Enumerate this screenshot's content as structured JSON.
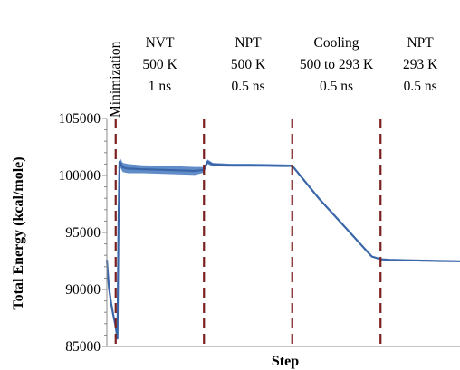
{
  "chart_data": {
    "type": "line",
    "title": "",
    "xlabel": "Step",
    "ylabel": "Total Energy (kcal/mole)",
    "ylim": [
      85000,
      105000
    ],
    "yticks": [
      85000,
      90000,
      95000,
      100000,
      105000
    ],
    "ytick_labels": [
      "85000",
      "90000",
      "95000",
      "100000",
      "105000"
    ],
    "minor_y_step": 1000,
    "xlim": [
      0,
      100
    ],
    "x_tick_labels_shown": false,
    "grid": false,
    "legend": "none",
    "phase_boundaries": [
      2.5,
      27.5,
      52.5,
      77.5
    ],
    "phase_boundary_color": "#7b1f1f",
    "line_color": "#3a66a8",
    "band_color": "#4f7fc2",
    "phases": [
      {
        "name": "Minimization",
        "vertical": true
      },
      {
        "name": "NVT",
        "temperature": "500 K",
        "duration": "1 ns"
      },
      {
        "name": "NPT",
        "temperature": "500 K",
        "duration": "0.5 ns"
      },
      {
        "name": "Cooling",
        "temperature": "500 to 293 K",
        "duration": "0.5 ns"
      },
      {
        "name": "NPT",
        "temperature": "293 K",
        "duration": "0.5 ns"
      }
    ],
    "series": [
      {
        "x": [
          0,
          0.6,
          1.2,
          1.8,
          2.4,
          3.0,
          3.3,
          3.6,
          4.5,
          6,
          10,
          15,
          20,
          25,
          27.5,
          28.5,
          30,
          35,
          40,
          45,
          50,
          52.5,
          60,
          65,
          70,
          75,
          77.5,
          80,
          85,
          90,
          95,
          100
        ],
        "y": [
          92600,
          90200,
          88800,
          87800,
          86900,
          85700,
          96000,
          101200,
          100700,
          100600,
          100550,
          100500,
          100450,
          100400,
          100500,
          101200,
          100950,
          100900,
          100900,
          100880,
          100850,
          100850,
          98000,
          96300,
          94600,
          92900,
          92650,
          92600,
          92560,
          92530,
          92500,
          92480
        ],
        "band_halfwidth": [
          0,
          0,
          0,
          0,
          0,
          0,
          0,
          400,
          400,
          400,
          350,
          350,
          350,
          350,
          250,
          200,
          150,
          120,
          120,
          120,
          120,
          100,
          80,
          80,
          80,
          80,
          60,
          50,
          50,
          50,
          50,
          50
        ]
      }
    ]
  }
}
